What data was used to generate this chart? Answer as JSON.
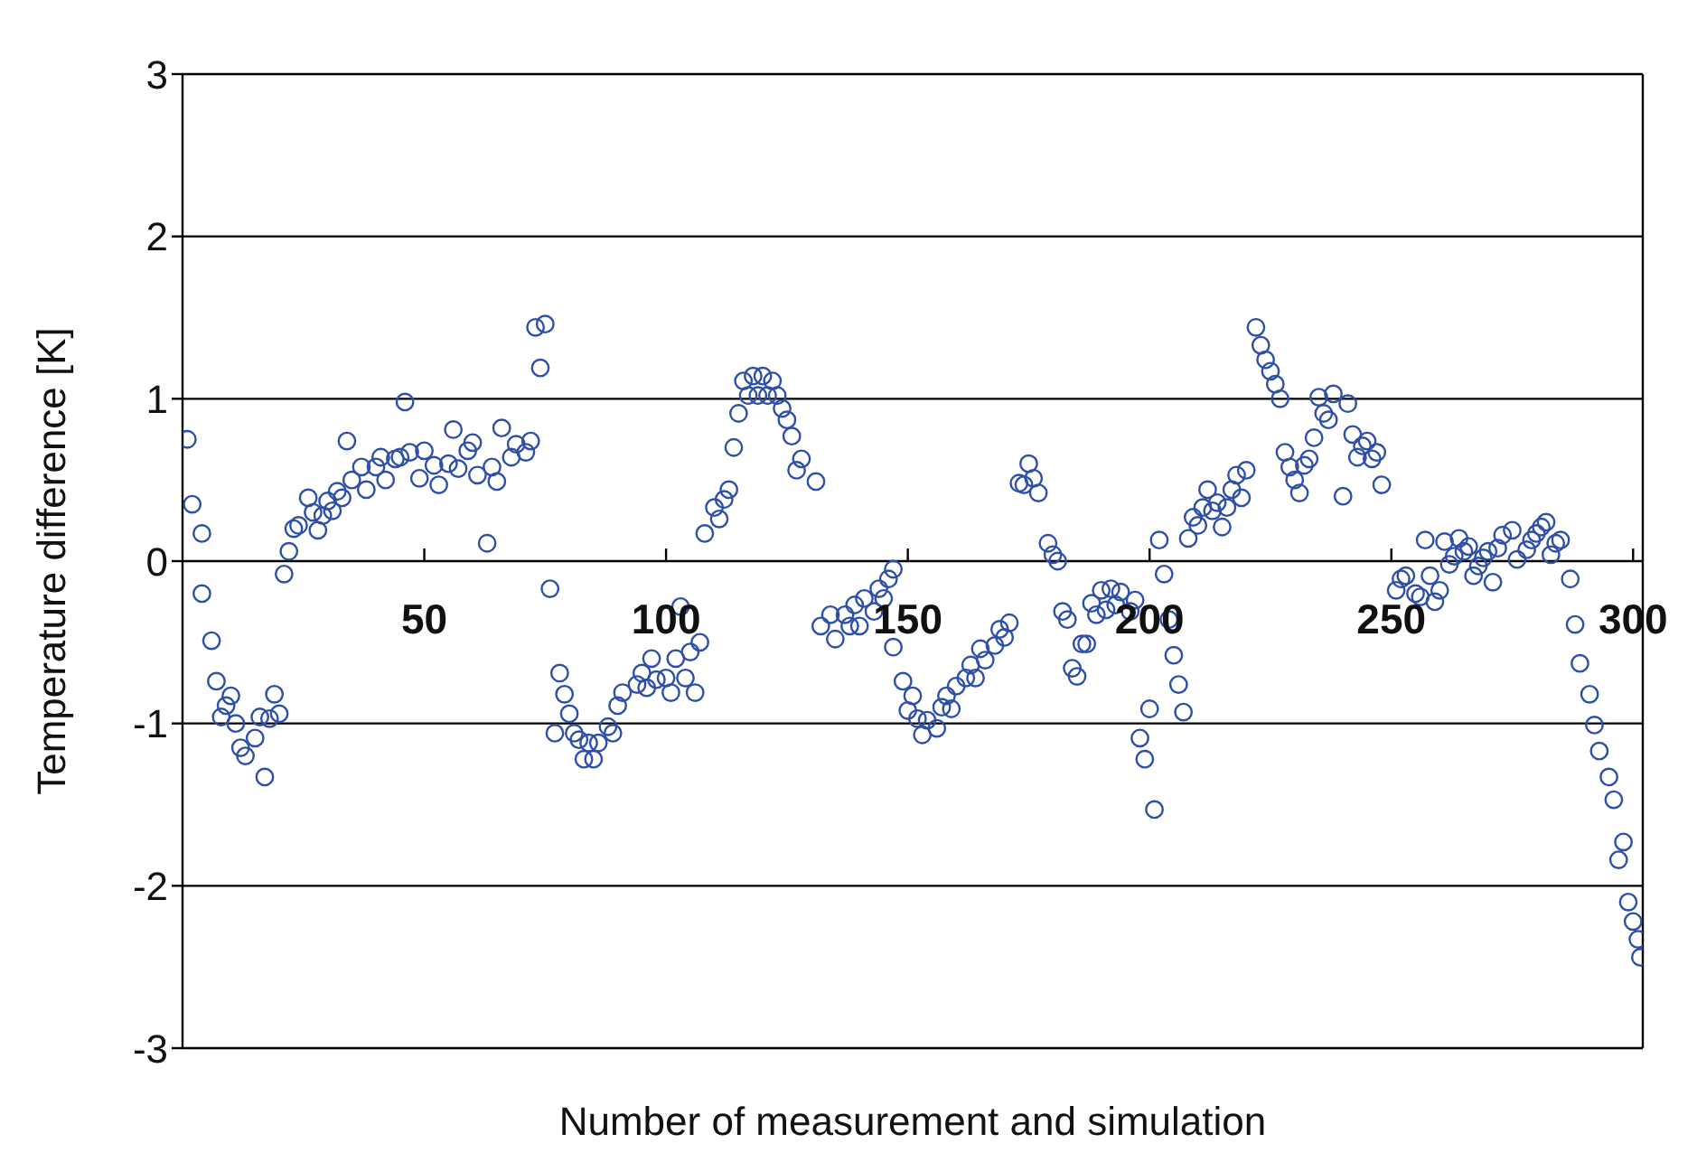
{
  "chart_data": {
    "type": "scatter",
    "xlabel": "Number of measurement and simulation",
    "ylabel": "Temperature difference [K]",
    "xlim": [
      0,
      302
    ],
    "xticks": [
      50,
      100,
      150,
      200,
      250,
      300
    ],
    "ylim": [
      -3,
      3
    ],
    "yticks": [
      -3,
      -2,
      -1,
      0,
      1,
      2,
      3
    ],
    "grid": "y",
    "marker": "circle",
    "series": [
      {
        "color": "#2e4fa8",
        "x": [
          1,
          2,
          4,
          4,
          6,
          7,
          8,
          9,
          10,
          11,
          12,
          13,
          15,
          16,
          17,
          18,
          19,
          20,
          21,
          22,
          23,
          24,
          26,
          27,
          28,
          29,
          30,
          31,
          32,
          33,
          34,
          35,
          37,
          38,
          40,
          41,
          42,
          44,
          45,
          46,
          47,
          49,
          50,
          52,
          53,
          55,
          56,
          57,
          59,
          60,
          61,
          63,
          64,
          65,
          66,
          68,
          69,
          71,
          72,
          73,
          74,
          75,
          76,
          77,
          78,
          79,
          80,
          81,
          82,
          83,
          84,
          85,
          86,
          88,
          89,
          90,
          91,
          94,
          95,
          96,
          97,
          98,
          100,
          101,
          102,
          103,
          104,
          105,
          106,
          107,
          108,
          110,
          111,
          112,
          113,
          114,
          115,
          116,
          117,
          118,
          119,
          120,
          121,
          122,
          123,
          124,
          125,
          126,
          127,
          128,
          131,
          132,
          134,
          135,
          137,
          138,
          139,
          140,
          141,
          143,
          144,
          145,
          146,
          147,
          147,
          149,
          150,
          151,
          152,
          153,
          154,
          156,
          157,
          158,
          159,
          160,
          162,
          163,
          164,
          165,
          166,
          168,
          169,
          170,
          171,
          173,
          174,
          175,
          176,
          177,
          179,
          180,
          181,
          182,
          183,
          184,
          185,
          186,
          187,
          188,
          189,
          190,
          191,
          192,
          193,
          194,
          196,
          197,
          198,
          199,
          200,
          201,
          202,
          203,
          204,
          205,
          206,
          207,
          208,
          209,
          210,
          211,
          212,
          213,
          214,
          215,
          216,
          217,
          218,
          219,
          220,
          222,
          223,
          224,
          225,
          226,
          227,
          228,
          229,
          230,
          231,
          232,
          233,
          234,
          235,
          236,
          237,
          238,
          240,
          241,
          242,
          243,
          244,
          245,
          246,
          247,
          248,
          251,
          252,
          253,
          255,
          256,
          257,
          258,
          259,
          260,
          261,
          262,
          263,
          264,
          265,
          266,
          267,
          268,
          269,
          270,
          271,
          272,
          273,
          275,
          276,
          278,
          279,
          280,
          281,
          282,
          283,
          284,
          285,
          287,
          288,
          289,
          291,
          292,
          293,
          295,
          296,
          297,
          298,
          299,
          300,
          301,
          301.5
        ],
        "values": [
          0.75,
          0.35,
          0.17,
          -0.2,
          -0.49,
          -0.74,
          -0.96,
          -0.89,
          -0.83,
          -1.0,
          -1.15,
          -1.2,
          -1.09,
          -0.96,
          -1.33,
          -0.97,
          -0.82,
          -0.94,
          -0.08,
          0.06,
          0.2,
          0.22,
          0.39,
          0.3,
          0.19,
          0.28,
          0.37,
          0.31,
          0.43,
          0.39,
          0.74,
          0.5,
          0.58,
          0.44,
          0.58,
          0.64,
          0.5,
          0.63,
          0.64,
          0.98,
          0.67,
          0.51,
          0.68,
          0.59,
          0.47,
          0.6,
          0.81,
          0.57,
          0.68,
          0.73,
          0.53,
          0.11,
          0.58,
          0.49,
          0.82,
          0.64,
          0.72,
          0.67,
          0.74,
          1.44,
          1.19,
          1.46,
          -0.17,
          -1.06,
          -0.69,
          -0.82,
          -0.94,
          -1.06,
          -1.1,
          -1.22,
          -1.12,
          -1.22,
          -1.12,
          -1.02,
          -1.06,
          -0.89,
          -0.81,
          -0.76,
          -0.69,
          -0.78,
          -0.6,
          -0.73,
          -0.72,
          -0.81,
          -0.6,
          -0.28,
          -0.72,
          -0.56,
          -0.81,
          -0.5,
          0.17,
          0.33,
          0.26,
          0.38,
          0.44,
          0.7,
          0.91,
          1.11,
          1.02,
          1.14,
          1.02,
          1.14,
          1.02,
          1.11,
          1.02,
          0.94,
          0.87,
          0.77,
          0.56,
          0.63,
          0.49,
          -0.4,
          -0.33,
          -0.48,
          -0.33,
          -0.4,
          -0.27,
          -0.4,
          -0.23,
          -0.31,
          -0.17,
          -0.23,
          -0.11,
          -0.05,
          -0.53,
          -0.74,
          -0.92,
          -0.83,
          -0.97,
          -1.07,
          -0.98,
          -1.03,
          -0.9,
          -0.83,
          -0.91,
          -0.77,
          -0.72,
          -0.64,
          -0.72,
          -0.54,
          -0.61,
          -0.52,
          -0.42,
          -0.47,
          -0.38,
          0.48,
          0.47,
          0.6,
          0.51,
          0.42,
          0.11,
          0.04,
          0.0,
          -0.31,
          -0.36,
          -0.66,
          -0.71,
          -0.51,
          -0.51,
          -0.26,
          -0.33,
          -0.18,
          -0.3,
          -0.17,
          -0.27,
          -0.19,
          -0.31,
          -0.24,
          -1.09,
          -1.22,
          -0.91,
          -1.53,
          0.13,
          -0.08,
          -0.36,
          -0.58,
          -0.76,
          -0.93,
          0.14,
          0.27,
          0.22,
          0.33,
          0.44,
          0.31,
          0.36,
          0.21,
          0.33,
          0.44,
          0.53,
          0.39,
          0.56,
          1.44,
          1.33,
          1.24,
          1.17,
          1.09,
          1.0,
          0.67,
          0.58,
          0.5,
          0.42,
          0.59,
          0.63,
          0.76,
          1.01,
          0.91,
          0.87,
          1.03,
          0.4,
          0.97,
          0.78,
          0.64,
          0.71,
          0.74,
          0.63,
          0.67,
          0.47,
          -0.18,
          -0.11,
          -0.09,
          -0.2,
          -0.22,
          0.13,
          -0.09,
          -0.25,
          -0.18,
          0.12,
          -0.02,
          0.03,
          0.14,
          0.06,
          0.09,
          -0.09,
          -0.03,
          0.02,
          0.06,
          -0.13,
          0.08,
          0.16,
          0.19,
          0.01,
          0.07,
          0.13,
          0.17,
          0.21,
          0.24,
          0.04,
          0.11,
          0.13,
          -0.11,
          -0.39,
          -0.63,
          -0.82,
          -1.01,
          -1.17,
          -1.33,
          -1.47,
          -1.84,
          -1.73,
          -2.1,
          -2.22,
          -2.33,
          -2.44
        ]
      }
    ]
  }
}
